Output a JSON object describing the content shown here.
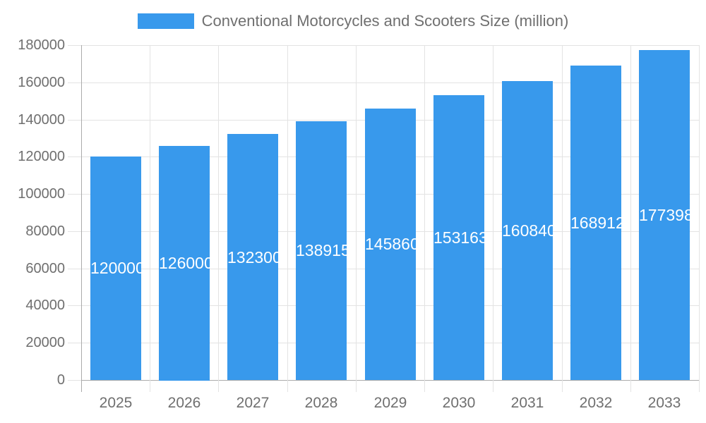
{
  "chart_data": {
    "type": "bar",
    "title": "Conventional Motorcycles and Scooters Size (million)",
    "legend_position": "top",
    "categories": [
      "2025",
      "2026",
      "2027",
      "2028",
      "2029",
      "2030",
      "2031",
      "2032",
      "2033"
    ],
    "series": [
      {
        "name": "Conventional Motorcycles and Scooters Size (million)",
        "values": [
          120000,
          126000,
          132300,
          138915,
          145860,
          153163,
          160840,
          168912,
          177398
        ]
      }
    ],
    "bar_value_labels": [
      "120000",
      "126000",
      "132300",
      "138915",
      "145860",
      "153163",
      "160840",
      "168912",
      "177398"
    ],
    "xlabel": "",
    "ylabel": "",
    "ylim": [
      0,
      180000
    ],
    "ytick_step": 20000,
    "ytick_labels": [
      "0",
      "20000",
      "40000",
      "60000",
      "80000",
      "100000",
      "120000",
      "140000",
      "160000",
      "180000"
    ],
    "grid": true,
    "colors": {
      "bar": "#3899EC",
      "bar_label": "#FFFFFF",
      "axis_line": "#ABABAB",
      "grid_line": "#E3E3E3",
      "text": "#6F6F6F",
      "background": "#FFFFFF"
    }
  }
}
